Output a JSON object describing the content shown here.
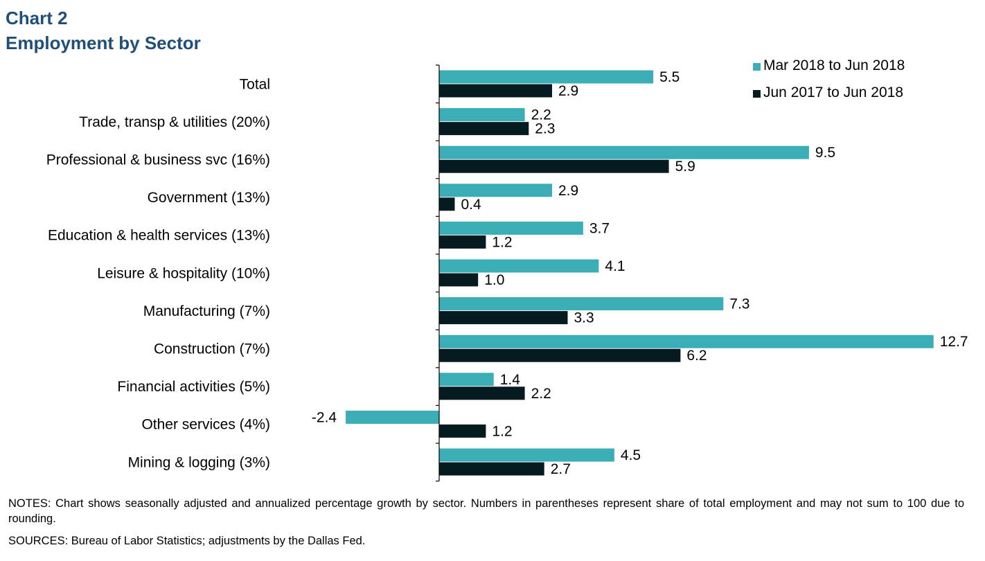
{
  "header": {
    "title_line1": "Chart 2",
    "title_line2": "Employment by Sector"
  },
  "chart_data": {
    "type": "bar",
    "orientation": "horizontal",
    "title": "Chart 2 Employment by Sector",
    "categories": [
      "Total",
      "Trade, transp & utilities (20%)",
      "Professional & business svc (16%)",
      "Government (13%)",
      "Education & health services (13%)",
      "Leisure & hospitality (10%)",
      "Manufacturing (7%)",
      "Construction (7%)",
      "Financial activities (5%)",
      "Other services (4%)",
      "Mining & logging (3%)"
    ],
    "series": [
      {
        "name": "Mar 2018 to Jun 2018",
        "color": "#3aadb7",
        "values": [
          5.5,
          2.2,
          9.5,
          2.9,
          3.7,
          4.1,
          7.3,
          12.7,
          1.4,
          -2.4,
          4.5
        ]
      },
      {
        "name": "Jun 2017 to Jun 2018",
        "color": "#061b1f",
        "values": [
          2.9,
          2.3,
          5.9,
          0.4,
          1.2,
          1.0,
          3.3,
          6.2,
          2.2,
          1.2,
          2.7
        ]
      }
    ],
    "labels": [
      [
        "5.5",
        "2.2",
        "9.5",
        "2.9",
        "3.7",
        "4.1",
        "7.3",
        "12.7",
        "1.4",
        "-2.4",
        "4.5"
      ],
      [
        "2.9",
        "2.3",
        "5.9",
        "0.4",
        "1.2",
        "1.0",
        "3.3",
        "6.2",
        "2.2",
        "1.2",
        "2.7"
      ]
    ],
    "xlim": [
      -2.4,
      12.7
    ],
    "grid": false,
    "legend_position": "top-right"
  },
  "footer": {
    "notes": "NOTES: Chart shows seasonally adjusted and annualized percentage growth by sector. Numbers in parentheses represent share of total employment and may not sum to 100 due to rounding.",
    "sources": "SOURCES: Bureau of Labor Statistics; adjustments by the Dallas Fed."
  }
}
